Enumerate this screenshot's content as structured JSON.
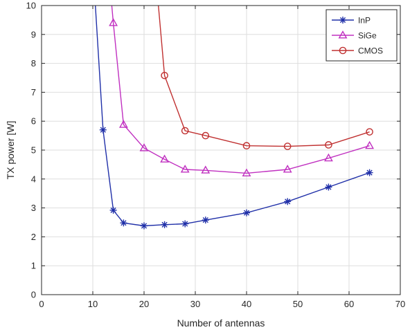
{
  "chart_data": {
    "type": "line",
    "title": "",
    "xlabel": "Number of antennas",
    "ylabel": "TX power [W]",
    "xlim": [
      0,
      70
    ],
    "ylim": [
      0,
      10
    ],
    "xticks": [
      0,
      10,
      20,
      30,
      40,
      50,
      60,
      70
    ],
    "yticks": [
      0,
      1,
      2,
      3,
      4,
      5,
      6,
      7,
      8,
      9,
      10
    ],
    "grid": true,
    "legend_position": "top-right",
    "series": [
      {
        "name": "InP",
        "color": "#1f2fa8",
        "marker": "asterisk",
        "x": [
          10.5,
          12,
          14,
          16,
          20,
          24,
          28,
          32,
          40,
          48,
          56,
          64
        ],
        "y": [
          10,
          5.7,
          2.92,
          2.48,
          2.38,
          2.42,
          2.45,
          2.58,
          2.83,
          3.22,
          3.72,
          4.22
        ],
        "marked_from": 1
      },
      {
        "name": "SiGe",
        "color": "#c030c0",
        "marker": "triangle",
        "x": [
          13.7,
          14,
          16,
          20,
          24,
          28,
          32,
          40,
          48,
          56,
          64
        ],
        "y": [
          10,
          9.4,
          5.88,
          5.07,
          4.68,
          4.33,
          4.3,
          4.2,
          4.33,
          4.72,
          5.15
        ],
        "marked_from": 1
      },
      {
        "name": "CMOS",
        "color": "#c03030",
        "marker": "circle",
        "x": [
          22.8,
          24,
          28,
          32,
          40,
          48,
          56,
          64
        ],
        "y": [
          10,
          7.58,
          5.67,
          5.5,
          5.15,
          5.13,
          5.18,
          5.63
        ],
        "marked_from": 1
      }
    ]
  }
}
